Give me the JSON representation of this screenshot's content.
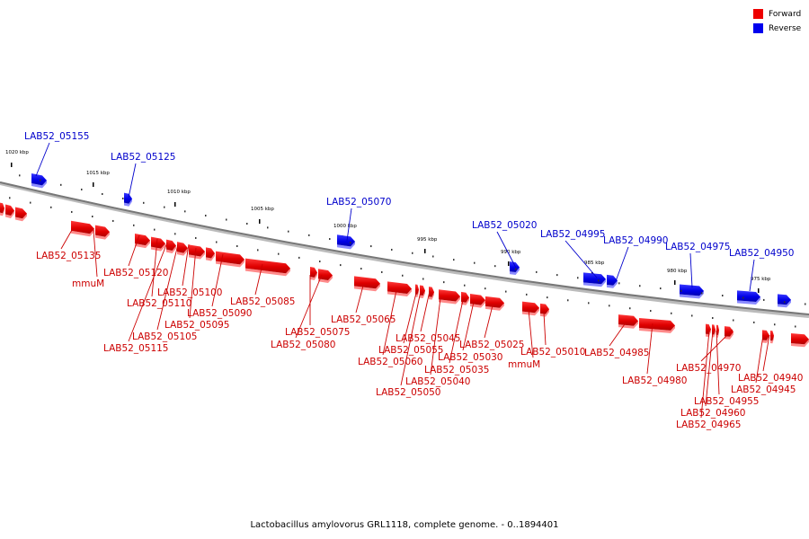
{
  "legend": {
    "forward_label": "Forward",
    "reverse_label": "Reverse",
    "forward_color": "#ee0000",
    "reverse_color": "#0000ee"
  },
  "caption": "Lactobacillus amylovorus GRL1118, complete genome. - 0..1894401",
  "ticks": [
    "1020 kbp",
    "1015 kbp",
    "1010 kbp",
    "1005 kbp",
    "1000 kbp",
    "995 kbp",
    "990 kbp",
    "985 kbp",
    "980 kbp",
    "975 kbp"
  ],
  "forward_labels": [
    "LAB52_05135",
    "mmuM",
    "LAB52_05120",
    "LAB52_05110",
    "LAB52_05100",
    "LAB52_05105",
    "LAB52_05115",
    "LAB52_05095",
    "LAB52_05090",
    "LAB52_05085",
    "LAB52_05075",
    "LAB52_05080",
    "LAB52_05065",
    "LAB52_05060",
    "LAB52_05055",
    "LAB52_05045",
    "LAB52_05050",
    "LAB52_05040",
    "LAB52_05035",
    "LAB52_05030",
    "LAB52_05025",
    "mmuM",
    "LAB52_05010",
    "LAB52_04985",
    "LAB52_04980",
    "LAB52_04970",
    "LAB52_04955",
    "LAB52_04960",
    "LAB52_04965",
    "LAB52_04940",
    "LAB52_04945"
  ],
  "reverse_labels": [
    "LAB52_05155",
    "LAB52_05125",
    "LAB52_05070",
    "LAB52_05020",
    "LAB52_04995",
    "LAB52_04990",
    "LAB52_04975",
    "LAB52_04950"
  ]
}
